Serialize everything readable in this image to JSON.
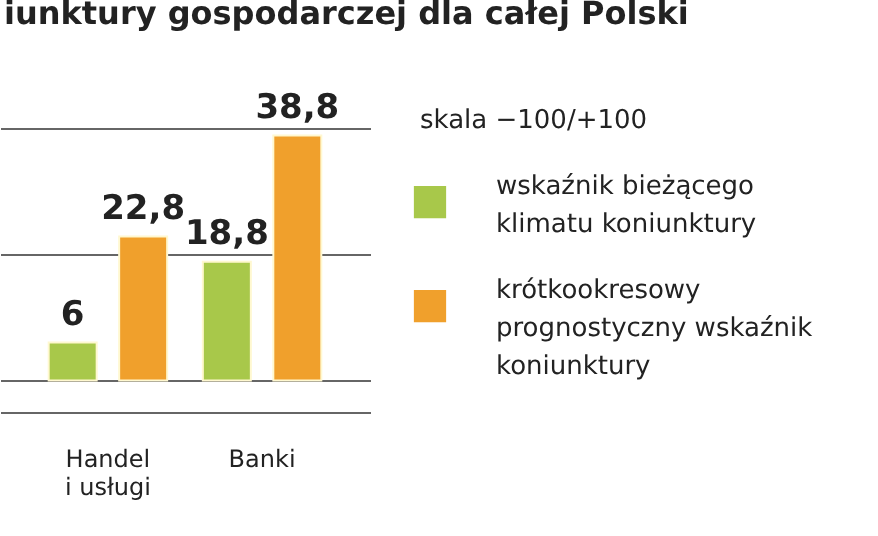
{
  "chart_data": {
    "type": "bar",
    "title": "iunktury gospodarczej dla całej Polski",
    "categories": [
      "Handel i usługi",
      "Banki"
    ],
    "series": [
      {
        "name": "wskaźnik bieżącego klimatu koniunktury",
        "color": "#a8c84a",
        "values": [
          6,
          18.8
        ],
        "value_labels": [
          "6",
          "18,8"
        ]
      },
      {
        "name": "krótkookresowy prognostyczny wskaźnik koniunktury",
        "color": "#f0a02c",
        "values": [
          22.8,
          38.8
        ],
        "value_labels": [
          "22,8",
          "38,8"
        ]
      }
    ],
    "ylim": [
      -5,
      40
    ],
    "yticks": [
      {
        "value": -5,
        "label": null
      },
      {
        "value": 0,
        "label": null
      },
      {
        "value": 20,
        "label": null
      },
      {
        "value": 40,
        "label": null
      }
    ],
    "grid": "y",
    "tick_labels": "x",
    "legend": "right",
    "annotations": [
      "skala −100/+100"
    ]
  }
}
